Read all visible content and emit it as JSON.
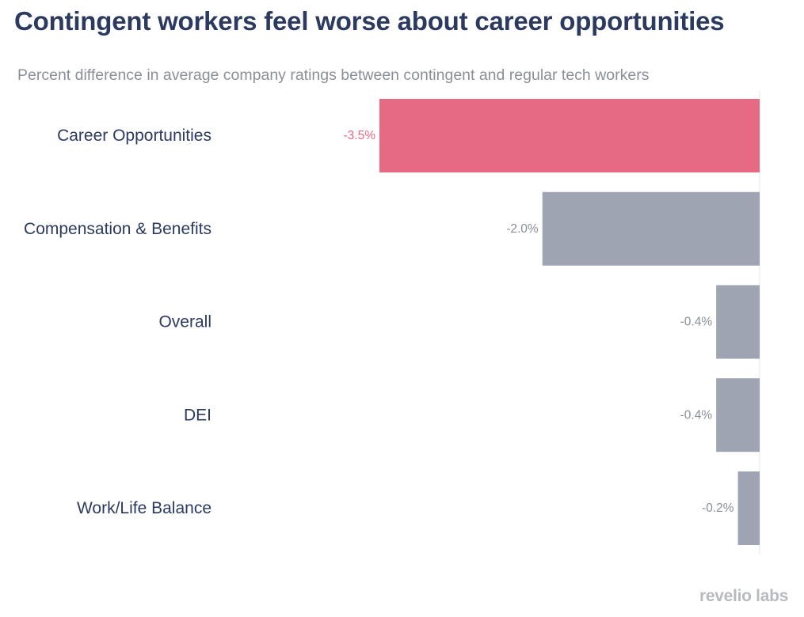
{
  "title": "Contingent workers feel worse about career opportunities",
  "subtitle": "Percent difference in average company ratings between contingent and regular tech workers",
  "brand": "revelio labs",
  "colors": {
    "highlight": "#e76a85",
    "default": "#9ea4b2",
    "label_dark": "#2b3a5e",
    "axis": "#e2e4e8"
  },
  "chart_data": {
    "type": "bar",
    "orientation": "horizontal",
    "title": "Contingent workers feel worse about career opportunities",
    "subtitle": "Percent difference in average company ratings between contingent and regular tech workers",
    "categories": [
      "Career Opportunities",
      "Compensation & Benefits",
      "Overall",
      "DEI",
      "Work/Life Balance"
    ],
    "values": [
      -3.5,
      -2.0,
      -0.4,
      -0.4,
      -0.2
    ],
    "labels": [
      "-3.5%",
      "-2.0%",
      "-0.4%",
      "-0.4%",
      "-0.2%"
    ],
    "highlight_index": 0,
    "xlim": [
      -3.5,
      0
    ],
    "xlabel": "",
    "ylabel": "",
    "grid": false
  }
}
